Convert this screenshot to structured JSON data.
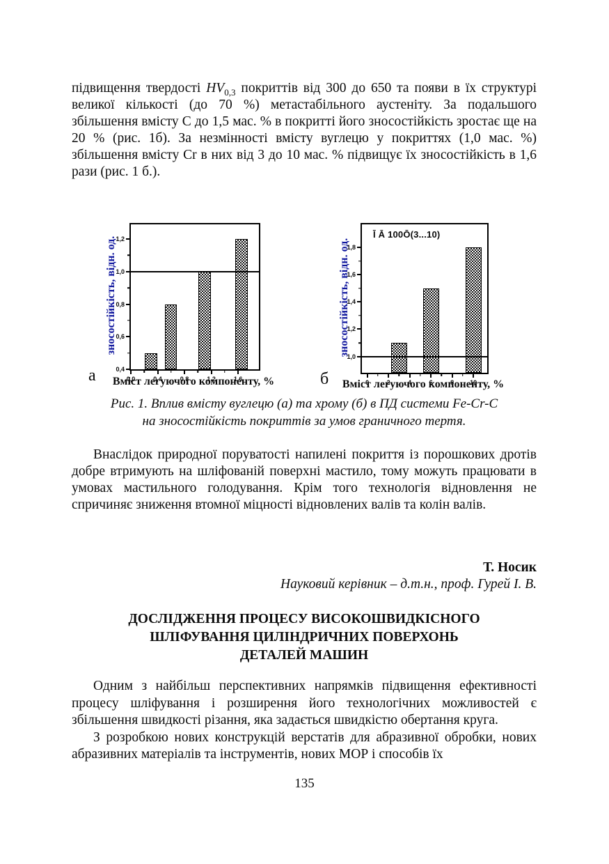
{
  "page": {
    "number": "135"
  },
  "paragraphs": {
    "p1": {
      "before": "підвищення твердості ",
      "hv": "HV",
      "hv_sub": "0,3",
      "after": " покриттів від 300 до 650 та появи в їх структурі великої кількості (до 70 %) метастабільного аустеніту. За подальшого збільшення вмісту С до 1,5 мас. % в покритті його зносостійкість зростає ще на 20 % (рис. 1б). За незмінності вмісту вуглецю у покриттях (1,0 мас. %) збільшення вмісту Cr в них від 3 до 10 мас. % підвищує їх зносостійкість в 1,6 рази (рис. 1 б.)."
    },
    "p2": "Внаслідок природної поруватості напилені покриття із порошкових дротів добре втримують на шліфованій поверхні мастило, тому можуть працювати в умовах мастильного голодування. Крім того технологія відновлення не спричиняє зниження втомної міцності відновлених валів та колін валів.",
    "p3": "Одним з найбільш перспективних напрямків підвищення ефективності процесу шліфування і розширення його технологічних можливостей є збільшення швидкості різання, яка задається швидкістю обертання круга.",
    "p4": "З розробкою нових конструкцій верстатів для абразивної обробки, нових абразивних матеріалів та інструментів, нових МОР і способів їх"
  },
  "figure": {
    "label_a": "а",
    "label_b": "б",
    "caption_lines": [
      "Рис. 1. Вплив вмісту вуглецю (а) та хрому (б) в ПД системи Fe-Cr-C",
      "на зносостійкість покриттів за умов граничного тертя."
    ]
  },
  "author": {
    "name": "Т. Носик",
    "supervisor": "Науковий керівник – д.т.н., проф. Гурей І. В."
  },
  "heading": {
    "lines": [
      "ДОСЛІДЖЕННЯ ПРОЦЕСУ ВИСОКОШВИДКІСНОГО",
      "ШЛІФУВАННЯ ЦИЛІНДРИЧНИХ ПОВЕРХОНЬ",
      "ДЕТАЛЕЙ МАШИН"
    ]
  },
  "colors": {
    "axis_label": "#10179e",
    "ink": "#0b0b0b"
  },
  "chart_data": [
    {
      "id": "a",
      "type": "bar",
      "panel": "а",
      "title": "",
      "ylabel": "зносостійкість, відн. од.",
      "xlabel": "Вміст легуючого компоненту, %",
      "xlim": [
        0,
        1.91
      ],
      "ylim": [
        0.4,
        1.29
      ],
      "grid": false,
      "hline": 1.0,
      "bar_width": 0.18,
      "xticks": [
        {
          "v": 0.0,
          "t": "0,0"
        },
        {
          "v": 0.4,
          "t": "0,4"
        },
        {
          "v": 0.8,
          "t": "0,8"
        },
        {
          "v": 1.2,
          "t": "1,2"
        },
        {
          "v": 1.6,
          "t": "1,6"
        }
      ],
      "yticks": [
        {
          "v": 0.4,
          "t": "0,4"
        },
        {
          "v": 0.6,
          "t": "0,6"
        },
        {
          "v": 0.8,
          "t": "0,8"
        },
        {
          "v": 1.0,
          "t": "1,0"
        },
        {
          "v": 1.2,
          "t": "1,2"
        }
      ],
      "bars": [
        {
          "x": 0.3,
          "value": 0.5
        },
        {
          "x": 0.6,
          "value": 0.8
        },
        {
          "x": 1.1,
          "value": 1.0
        },
        {
          "x": 1.65,
          "value": 1.2
        }
      ]
    },
    {
      "id": "b",
      "type": "bar",
      "panel": "б",
      "title": "Ī Ā 100Ō(3...10)",
      "ylabel": "зносостійкість, відн. од.",
      "xlabel": "Вміст легуючого компоненту, %",
      "xlim": [
        -0.5,
        11.3
      ],
      "ylim": [
        0.88,
        1.97
      ],
      "grid": false,
      "hline": 1.0,
      "bar_width": 1.5,
      "xticks": [
        {
          "v": 0,
          "t": "0"
        },
        {
          "v": 2,
          "t": "2"
        },
        {
          "v": 4,
          "t": "4"
        },
        {
          "v": 6,
          "t": "6"
        },
        {
          "v": 8,
          "t": "8"
        },
        {
          "v": 10,
          "t": "10"
        }
      ],
      "yticks": [
        {
          "v": 1.0,
          "t": "1,0"
        },
        {
          "v": 1.2,
          "t": "1,2"
        },
        {
          "v": 1.4,
          "t": "1,4"
        },
        {
          "v": 1.6,
          "t": "1,6"
        },
        {
          "v": 1.8,
          "t": "1,8"
        }
      ],
      "bars": [
        {
          "x": 3,
          "value": 1.1
        },
        {
          "x": 6,
          "value": 1.5
        },
        {
          "x": 10,
          "value": 1.8
        }
      ]
    }
  ]
}
